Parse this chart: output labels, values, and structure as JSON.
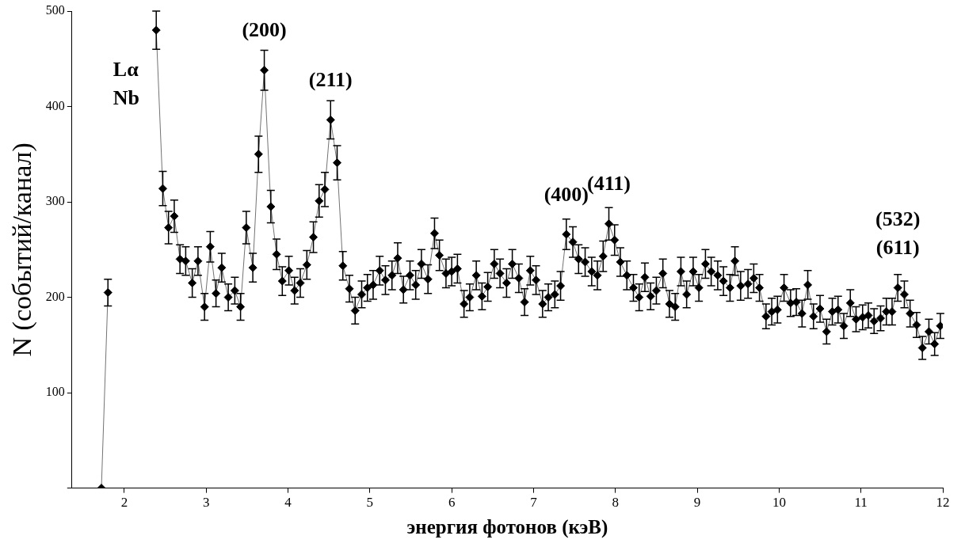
{
  "chart_data": {
    "type": "line",
    "xlabel": "энергия фотонов (кэВ)",
    "ylabel": "N (событий/канал)",
    "color": "#000000",
    "marker": "diamond",
    "line_style": "solid",
    "grid": false,
    "legend": false,
    "xlim": [
      1.36,
      12
    ],
    "xticks": [
      2,
      3,
      4,
      5,
      6,
      7,
      8,
      9,
      10,
      11,
      12
    ],
    "ylim": [
      0,
      500
    ],
    "yticks": [
      {
        "value": 0,
        "label": null
      },
      100,
      200,
      300,
      400,
      500
    ],
    "x": [
      1.72,
      1.8,
      1.87,
      1.94,
      2.02,
      2.09,
      2.17,
      2.24,
      2.31,
      2.39,
      2.47,
      2.54,
      2.61,
      2.68,
      2.75,
      2.83,
      2.9,
      2.98,
      3.05,
      3.12,
      3.19,
      3.27,
      3.35,
      3.42,
      3.49,
      3.57,
      3.64,
      3.71,
      3.79,
      3.86,
      3.93,
      4.01,
      4.08,
      4.15,
      4.23,
      4.31,
      4.38,
      4.45,
      4.52,
      4.6,
      4.67,
      4.75,
      4.82,
      4.9,
      4.97,
      5.04,
      5.12,
      5.19,
      5.27,
      5.34,
      5.41,
      5.49,
      5.56,
      5.63,
      5.71,
      5.79,
      5.85,
      5.93,
      6.0,
      6.07,
      6.15,
      6.22,
      6.3,
      6.37,
      6.44,
      6.52,
      6.59,
      6.67,
      6.74,
      6.82,
      6.89,
      6.96,
      7.03,
      7.11,
      7.18,
      7.26,
      7.33,
      7.4,
      7.48,
      7.55,
      7.63,
      7.71,
      7.78,
      7.85,
      7.92,
      7.99,
      8.06,
      8.14,
      8.22,
      8.29,
      8.36,
      8.43,
      8.5,
      8.58,
      8.66,
      8.73,
      8.8,
      8.87,
      8.95,
      9.02,
      9.1,
      9.17,
      9.25,
      9.32,
      9.4,
      9.46,
      9.53,
      9.62,
      9.69,
      9.76,
      9.84,
      9.91,
      9.98,
      10.06,
      10.14,
      10.21,
      10.28,
      10.35,
      10.42,
      10.5,
      10.58,
      10.65,
      10.72,
      10.79,
      10.87,
      10.94,
      11.02,
      11.09,
      11.16,
      11.24,
      11.31,
      11.38,
      11.45,
      11.53,
      11.6,
      11.68,
      11.75,
      11.83,
      11.9,
      11.97
    ],
    "values": [
      0,
      205,
      null,
      null,
      null,
      null,
      null,
      null,
      null,
      480,
      314,
      273,
      285,
      240,
      238,
      215,
      238,
      190,
      253,
      204,
      231,
      200,
      207,
      190,
      273,
      231,
      350,
      438,
      295,
      245,
      217,
      228,
      207,
      215,
      234,
      263,
      301,
      313,
      386,
      341,
      233,
      209,
      186,
      203,
      210,
      213,
      228,
      218,
      223,
      241,
      208,
      223,
      213,
      235,
      219,
      267,
      244,
      225,
      227,
      230,
      193,
      200,
      223,
      201,
      211,
      235,
      225,
      215,
      235,
      220,
      195,
      228,
      218,
      193,
      200,
      203,
      212,
      266,
      258,
      240,
      237,
      227,
      223,
      243,
      277,
      260,
      237,
      223,
      210,
      200,
      221,
      201,
      207,
      225,
      193,
      190,
      227,
      203,
      227,
      210,
      235,
      227,
      223,
      217,
      210,
      238,
      212,
      214,
      220,
      210,
      180,
      185,
      187,
      210,
      194,
      195,
      183,
      213,
      180,
      188,
      164,
      185,
      187,
      170,
      194,
      177,
      179,
      181,
      175,
      178,
      185,
      185,
      210,
      203,
      183,
      171,
      147,
      164,
      151,
      170
    ],
    "errors": [
      null,
      14,
      null,
      null,
      null,
      null,
      null,
      null,
      null,
      20,
      18,
      17,
      17,
      15,
      15,
      15,
      15,
      14,
      16,
      14,
      15,
      14,
      14,
      14,
      17,
      15,
      19,
      21,
      17,
      16,
      15,
      15,
      14,
      15,
      15,
      16,
      17,
      18,
      20,
      18,
      15,
      14,
      14,
      14,
      14,
      15,
      15,
      15,
      15,
      16,
      14,
      15,
      15,
      15,
      15,
      16,
      16,
      15,
      15,
      15,
      14,
      14,
      15,
      14,
      15,
      15,
      15,
      15,
      15,
      15,
      14,
      15,
      15,
      14,
      14,
      14,
      15,
      16,
      16,
      15,
      15,
      15,
      15,
      16,
      17,
      16,
      15,
      15,
      14,
      14,
      15,
      14,
      14,
      15,
      14,
      14,
      15,
      14,
      15,
      14,
      15,
      15,
      15,
      15,
      14,
      15,
      15,
      15,
      15,
      14,
      13,
      14,
      14,
      14,
      14,
      14,
      14,
      15,
      13,
      14,
      13,
      14,
      14,
      13,
      14,
      13,
      13,
      13,
      13,
      13,
      14,
      14,
      14,
      14,
      14,
      13,
      12,
      13,
      12,
      13
    ],
    "annotations": [
      {
        "text": "(200)",
        "x": 3.71,
        "y": 438
      },
      {
        "text": "(211)",
        "x": 4.52,
        "y": 386
      },
      {
        "text": "(400)",
        "x": 7.4,
        "y": 266
      },
      {
        "text": "(411)",
        "x": 7.92,
        "y": 277
      },
      {
        "text": "(532)",
        "x": 11.45,
        "y": 210
      },
      {
        "text": "(611)",
        "x": 11.45,
        "y": 210
      },
      "Lα",
      "Nb"
    ]
  }
}
